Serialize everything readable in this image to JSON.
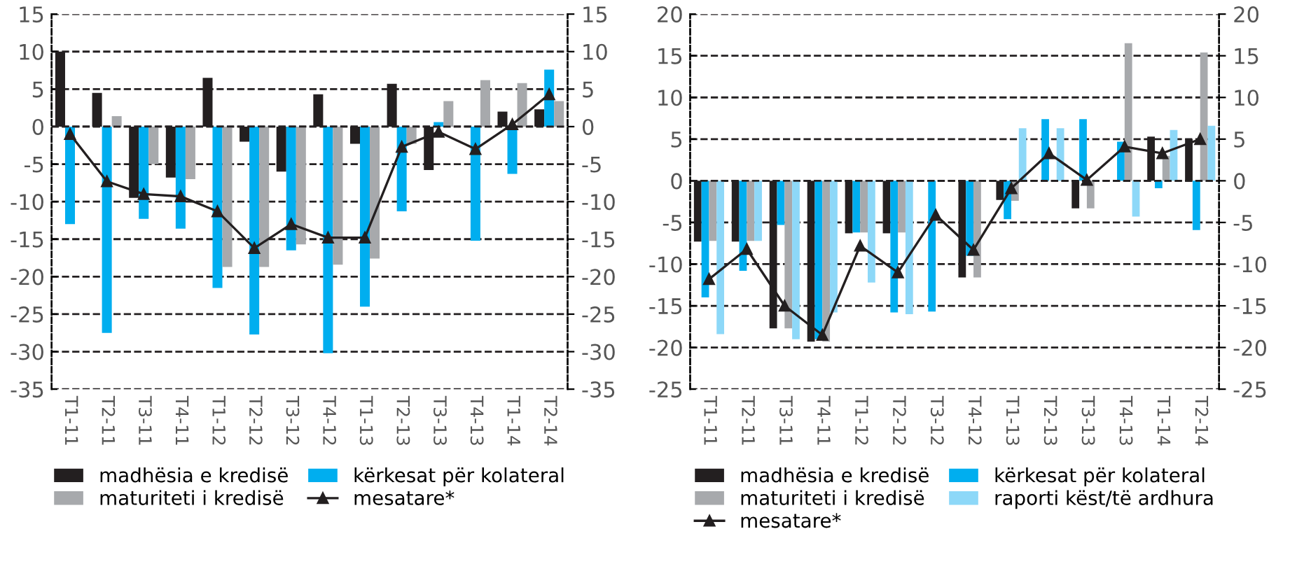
{
  "chart_data": [
    {
      "type": "bar",
      "categories": [
        "T1-11",
        "T2-11",
        "T3-11",
        "T4-11",
        "T1-12",
        "T2-12",
        "T3-12",
        "T4-12",
        "T1-13",
        "T2-13",
        "T3-13",
        "T4-13",
        "T1-14",
        "T2-14"
      ],
      "series": [
        {
          "name": "madhësia e kredisë",
          "color": "#231f20",
          "values": [
            10,
            4.5,
            -9.5,
            -6.8,
            6.5,
            -2,
            -6,
            4.3,
            -2.3,
            5.7,
            -5.8,
            0,
            2,
            2.3
          ]
        },
        {
          "name": "kërkesat për kolateral",
          "color": "#00aeef",
          "values": [
            -13,
            -27.5,
            -12.3,
            -13.6,
            -21.5,
            -27.7,
            -16.5,
            -30.2,
            -24,
            -11.3,
            0.6,
            -15.2,
            -6.3,
            7.6
          ]
        },
        {
          "name": "maturiteti i kredisë",
          "color": "#a7a9ac",
          "values": [
            0,
            1.4,
            -5,
            -7,
            -18.7,
            -18.7,
            -15.7,
            -18.4,
            -17.6,
            -2.3,
            3.4,
            6.2,
            5.8,
            3.4
          ]
        },
        {
          "name": "mesatare*",
          "type": "line",
          "color": "#231f20",
          "marker": "triangle",
          "values": [
            -1,
            -7.3,
            -9,
            -9.3,
            -11.3,
            -16.2,
            -13,
            -14.8,
            -14.8,
            -2.7,
            -0.7,
            -3,
            0.3,
            4.3
          ]
        }
      ],
      "ylim": [
        -35,
        15
      ],
      "yticks": [
        -35,
        -30,
        -25,
        -20,
        -15,
        -10,
        -5,
        0,
        5,
        10,
        15
      ],
      "y2lim": [
        -35,
        15
      ],
      "y2ticks": [
        -35,
        -30,
        -25,
        -20,
        -15,
        -10,
        -5,
        0,
        5,
        10,
        15
      ],
      "grid": "y",
      "legend": "bottom"
    },
    {
      "type": "bar",
      "categories": [
        "T1-11",
        "T2-11",
        "T3-11",
        "T4-11",
        "T1-12",
        "T2-12",
        "T3-12",
        "T4-12",
        "T1-13",
        "T2-13",
        "T3-13",
        "T4-13",
        "T1-14",
        "T2-14"
      ],
      "series": [
        {
          "name": "madhësia e kredisë",
          "color": "#231f20",
          "values": [
            -7.3,
            -7.3,
            -17.7,
            -19.3,
            -6.3,
            -6.3,
            0,
            -11.6,
            -2.3,
            0,
            -3.3,
            0,
            5.3,
            5
          ]
        },
        {
          "name": "kërkesat për kolateral",
          "color": "#00aeef",
          "values": [
            -14,
            -10.8,
            -5.3,
            -19,
            -6.2,
            -15.8,
            -15.7,
            -9,
            -4.6,
            7.4,
            7.4,
            4.7,
            -0.9,
            -5.9
          ]
        },
        {
          "name": "maturiteti i kredisë",
          "color": "#a7a9ac",
          "values": [
            -7.2,
            -7.2,
            -17.7,
            -19.3,
            -6.2,
            -6.2,
            0,
            -11.6,
            -2.4,
            0,
            -3.3,
            16.5,
            3,
            15.4
          ]
        },
        {
          "name": "raporti këst/të ardhura",
          "color": "#8dd8f8",
          "values": [
            -18.4,
            -7.2,
            -19,
            -15.8,
            -12.2,
            -16,
            0,
            0,
            6.3,
            6.3,
            0,
            -4.3,
            6.1,
            6.6
          ]
        },
        {
          "name": "mesatare*",
          "type": "line",
          "color": "#231f20",
          "marker": "triangle",
          "values": [
            -11.8,
            -8.2,
            -15,
            -18.5,
            -7.8,
            -11,
            -4.1,
            -8.3,
            -0.9,
            3.3,
            0.1,
            4.1,
            3.3,
            5
          ]
        }
      ],
      "ylim": [
        -25,
        20
      ],
      "yticks": [
        -25,
        -20,
        -15,
        -10,
        -5,
        0,
        5,
        10,
        15,
        20
      ],
      "y2lim": [
        -25,
        20
      ],
      "y2ticks": [
        -25,
        -20,
        -15,
        -10,
        -5,
        0,
        5,
        10,
        15,
        20
      ],
      "grid": "y",
      "legend": "bottom"
    }
  ]
}
